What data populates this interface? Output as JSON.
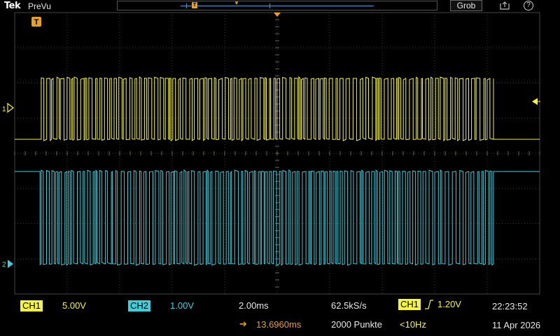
{
  "header": {
    "brand": "Tek",
    "mode": "PreVu",
    "zoom_button": "Grob",
    "export_icon": "export-icon",
    "help_icon": "help-icon",
    "help_glyph": "?",
    "trigger_badge": "T"
  },
  "channels": [
    {
      "id": "1",
      "label": "CH1",
      "scale": "5.00V",
      "color": "#f5f53a"
    },
    {
      "id": "2",
      "label": "CH2",
      "scale": "1.00V",
      "color": "#3ccfdc"
    }
  ],
  "timebase": {
    "time_per_div": "2.00ms",
    "position": "13.6960ms",
    "sample_rate": "62.5kS/s",
    "record_length": "2000 Punkte"
  },
  "trigger": {
    "source": "CH1",
    "level": "1.20V",
    "frequency": "<10Hz",
    "color": "#e8a020"
  },
  "clock": {
    "time": "22:23:52",
    "date": "11 Apr 2026"
  }
}
